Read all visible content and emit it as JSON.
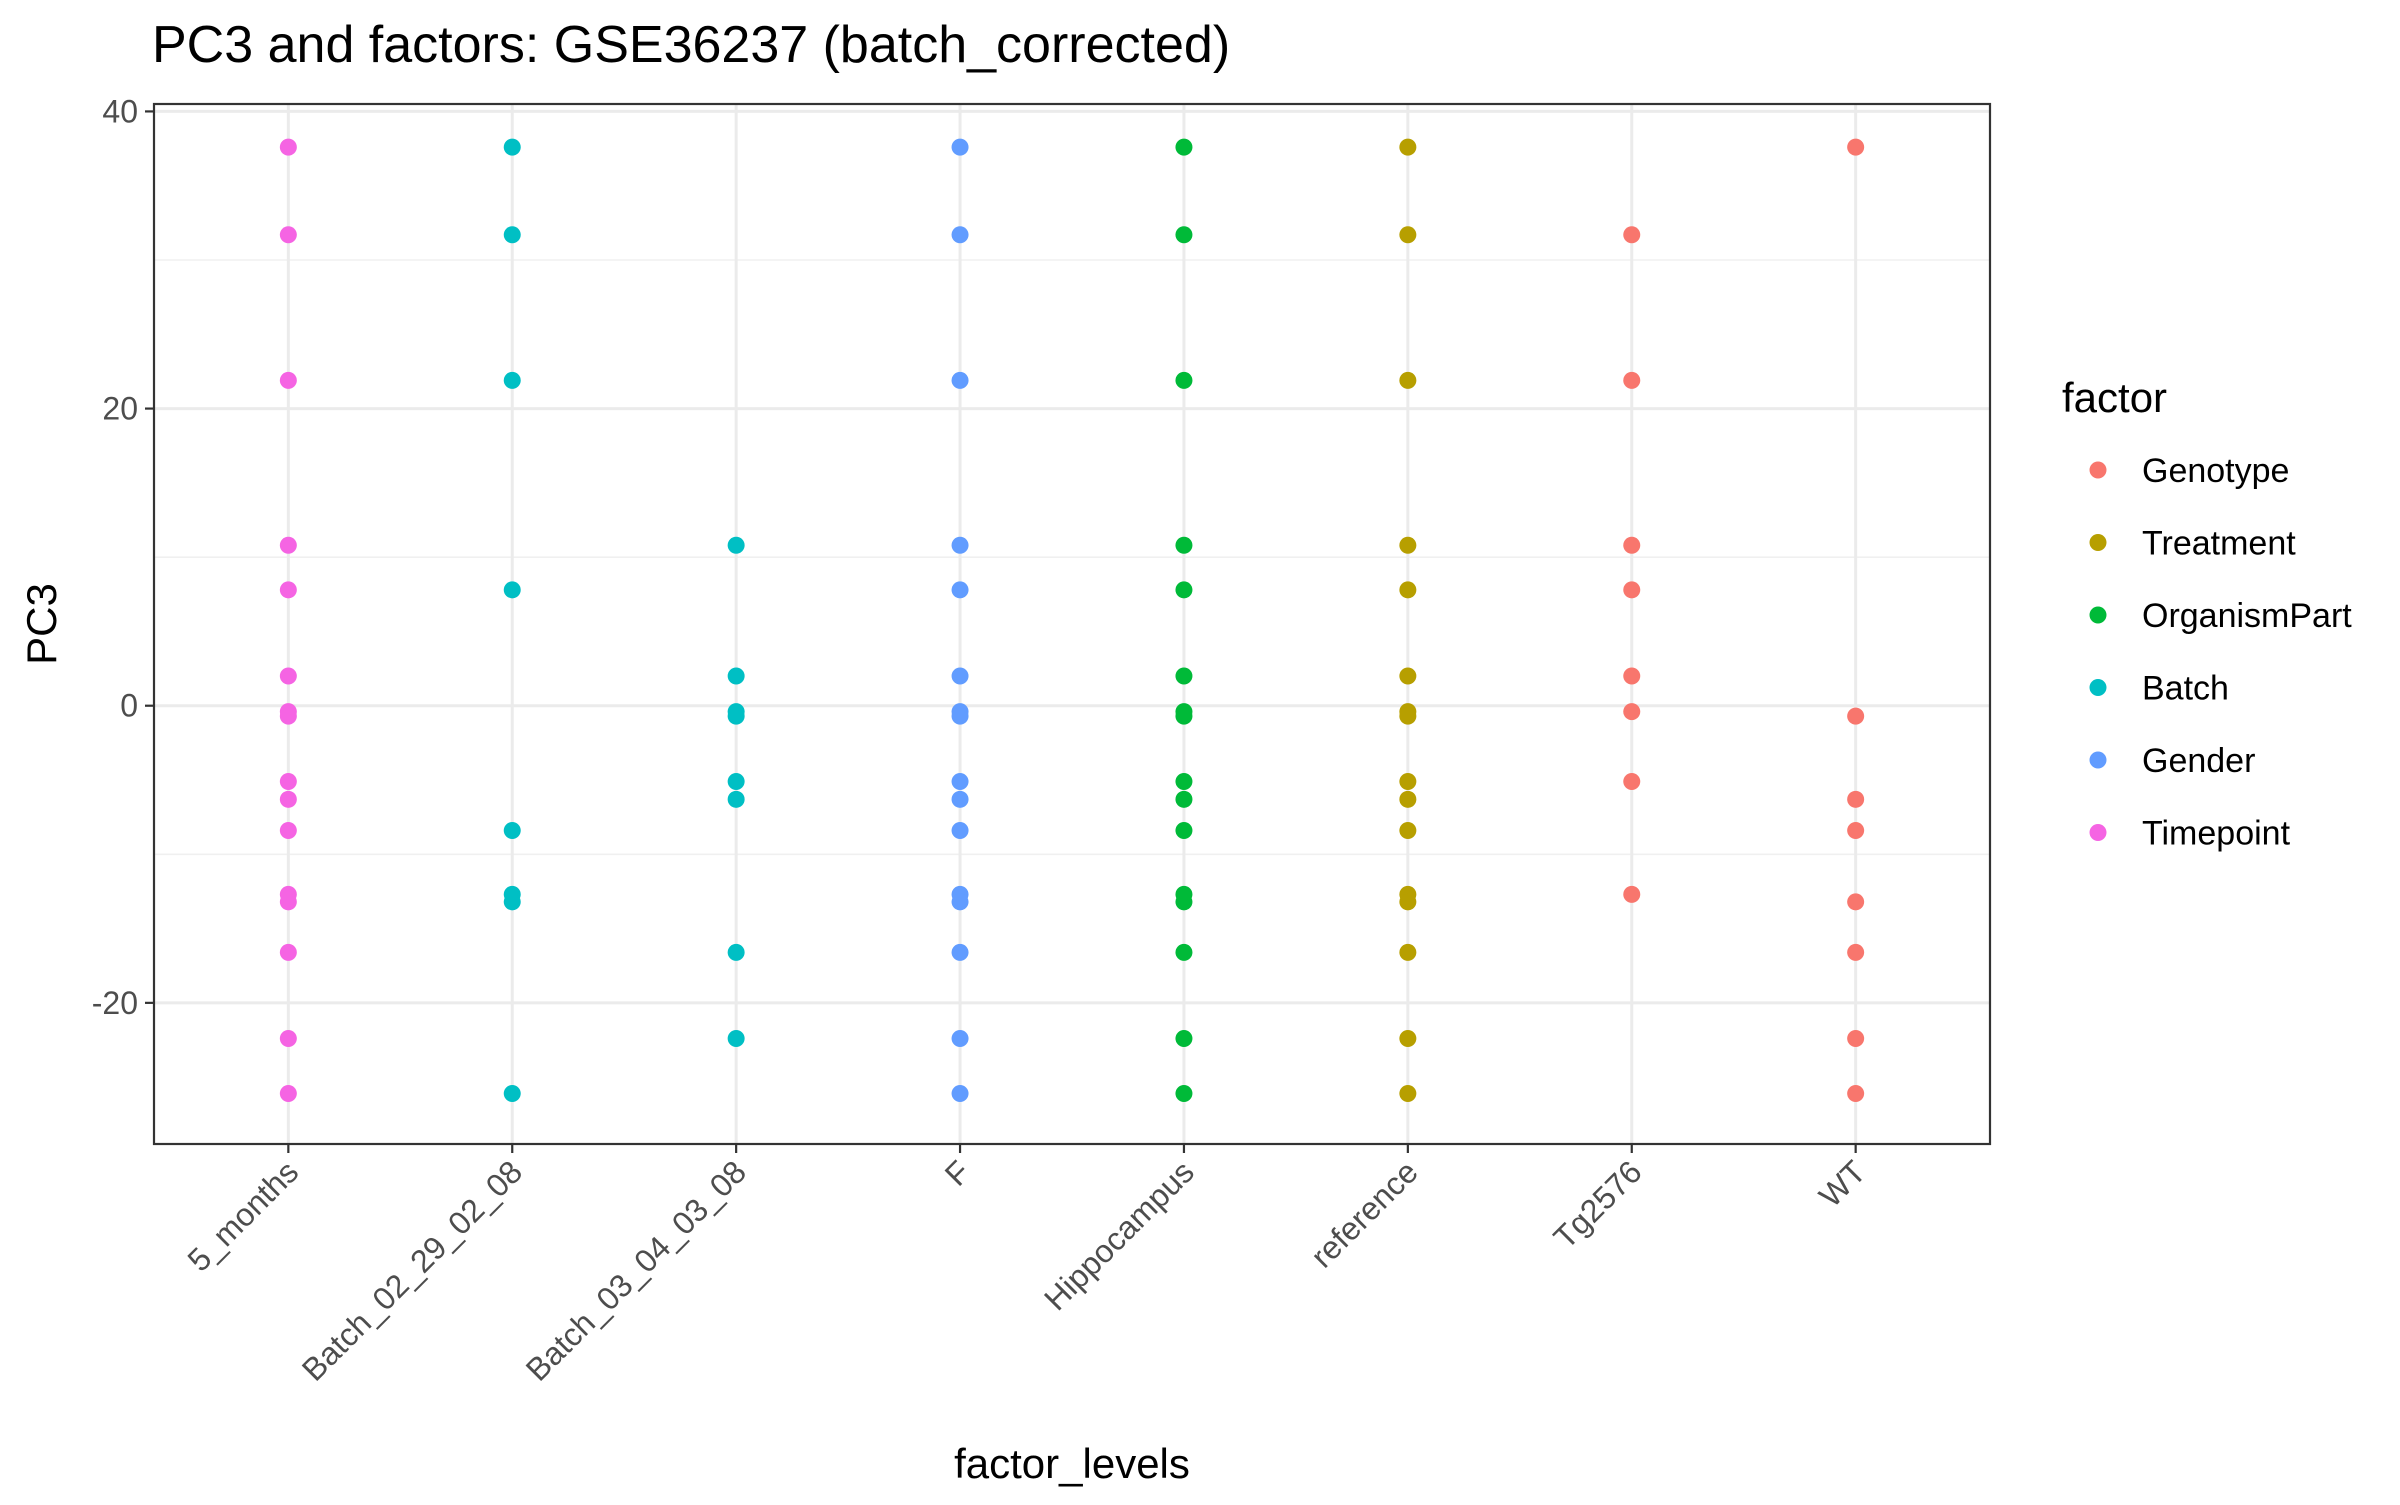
{
  "chart_data": {
    "type": "scatter",
    "title": "PC3 and factors: GSE36237 (batch_corrected)",
    "xlabel": "factor_levels",
    "ylabel": "PC3",
    "ylim": [
      -29.5,
      40.5
    ],
    "yticks": [
      -20,
      0,
      20,
      40
    ],
    "grid": true,
    "legend": {
      "title": "factor",
      "position": "right"
    },
    "categories": [
      "5_months",
      "Batch_02_29_02_08",
      "Batch_03_04_03_08",
      "F",
      "Hippocampus",
      "reference",
      "Tg2576",
      "WT"
    ],
    "series": [
      {
        "name": "Genotype",
        "color": "#F8766D",
        "points": [
          {
            "x": "Tg2576",
            "y": 31.7
          },
          {
            "x": "Tg2576",
            "y": 21.9
          },
          {
            "x": "Tg2576",
            "y": 10.8
          },
          {
            "x": "Tg2576",
            "y": 7.8
          },
          {
            "x": "Tg2576",
            "y": 2.0
          },
          {
            "x": "Tg2576",
            "y": -0.4
          },
          {
            "x": "Tg2576",
            "y": -5.1
          },
          {
            "x": "Tg2576",
            "y": -12.7
          },
          {
            "x": "WT",
            "y": 37.6
          },
          {
            "x": "WT",
            "y": -0.7
          },
          {
            "x": "WT",
            "y": -6.3
          },
          {
            "x": "WT",
            "y": -8.4
          },
          {
            "x": "WT",
            "y": -13.2
          },
          {
            "x": "WT",
            "y": -16.6
          },
          {
            "x": "WT",
            "y": -22.4
          },
          {
            "x": "WT",
            "y": -26.1
          }
        ]
      },
      {
        "name": "Treatment",
        "color": "#B79F00",
        "points": [
          {
            "x": "reference",
            "y": 37.6
          },
          {
            "x": "reference",
            "y": 31.7
          },
          {
            "x": "reference",
            "y": 21.9
          },
          {
            "x": "reference",
            "y": 10.8
          },
          {
            "x": "reference",
            "y": 7.8
          },
          {
            "x": "reference",
            "y": 2.0
          },
          {
            "x": "reference",
            "y": -0.4
          },
          {
            "x": "reference",
            "y": -0.7
          },
          {
            "x": "reference",
            "y": -5.1
          },
          {
            "x": "reference",
            "y": -6.3
          },
          {
            "x": "reference",
            "y": -8.4
          },
          {
            "x": "reference",
            "y": -12.7
          },
          {
            "x": "reference",
            "y": -13.2
          },
          {
            "x": "reference",
            "y": -16.6
          },
          {
            "x": "reference",
            "y": -22.4
          },
          {
            "x": "reference",
            "y": -26.1
          }
        ]
      },
      {
        "name": "OrganismPart",
        "color": "#00BA38",
        "points": [
          {
            "x": "Hippocampus",
            "y": 37.6
          },
          {
            "x": "Hippocampus",
            "y": 31.7
          },
          {
            "x": "Hippocampus",
            "y": 21.9
          },
          {
            "x": "Hippocampus",
            "y": 10.8
          },
          {
            "x": "Hippocampus",
            "y": 7.8
          },
          {
            "x": "Hippocampus",
            "y": 2.0
          },
          {
            "x": "Hippocampus",
            "y": -0.4
          },
          {
            "x": "Hippocampus",
            "y": -0.7
          },
          {
            "x": "Hippocampus",
            "y": -5.1
          },
          {
            "x": "Hippocampus",
            "y": -6.3
          },
          {
            "x": "Hippocampus",
            "y": -8.4
          },
          {
            "x": "Hippocampus",
            "y": -12.7
          },
          {
            "x": "Hippocampus",
            "y": -13.2
          },
          {
            "x": "Hippocampus",
            "y": -16.6
          },
          {
            "x": "Hippocampus",
            "y": -22.4
          },
          {
            "x": "Hippocampus",
            "y": -26.1
          }
        ]
      },
      {
        "name": "Batch",
        "color": "#00BFC4",
        "points": [
          {
            "x": "Batch_02_29_02_08",
            "y": 37.6
          },
          {
            "x": "Batch_02_29_02_08",
            "y": 31.7
          },
          {
            "x": "Batch_02_29_02_08",
            "y": 21.9
          },
          {
            "x": "Batch_02_29_02_08",
            "y": 7.8
          },
          {
            "x": "Batch_02_29_02_08",
            "y": -8.4
          },
          {
            "x": "Batch_02_29_02_08",
            "y": -12.7
          },
          {
            "x": "Batch_02_29_02_08",
            "y": -13.2
          },
          {
            "x": "Batch_02_29_02_08",
            "y": -26.1
          },
          {
            "x": "Batch_03_04_03_08",
            "y": 10.8
          },
          {
            "x": "Batch_03_04_03_08",
            "y": 2.0
          },
          {
            "x": "Batch_03_04_03_08",
            "y": -0.4
          },
          {
            "x": "Batch_03_04_03_08",
            "y": -0.7
          },
          {
            "x": "Batch_03_04_03_08",
            "y": -5.1
          },
          {
            "x": "Batch_03_04_03_08",
            "y": -6.3
          },
          {
            "x": "Batch_03_04_03_08",
            "y": -16.6
          },
          {
            "x": "Batch_03_04_03_08",
            "y": -22.4
          }
        ]
      },
      {
        "name": "Gender",
        "color": "#619CFF",
        "points": [
          {
            "x": "F",
            "y": 37.6
          },
          {
            "x": "F",
            "y": 31.7
          },
          {
            "x": "F",
            "y": 21.9
          },
          {
            "x": "F",
            "y": 10.8
          },
          {
            "x": "F",
            "y": 7.8
          },
          {
            "x": "F",
            "y": 2.0
          },
          {
            "x": "F",
            "y": -0.4
          },
          {
            "x": "F",
            "y": -0.7
          },
          {
            "x": "F",
            "y": -5.1
          },
          {
            "x": "F",
            "y": -6.3
          },
          {
            "x": "F",
            "y": -8.4
          },
          {
            "x": "F",
            "y": -12.7
          },
          {
            "x": "F",
            "y": -13.2
          },
          {
            "x": "F",
            "y": -16.6
          },
          {
            "x": "F",
            "y": -22.4
          },
          {
            "x": "F",
            "y": -26.1
          }
        ]
      },
      {
        "name": "Timepoint",
        "color": "#F564E3",
        "points": [
          {
            "x": "5_months",
            "y": 37.6
          },
          {
            "x": "5_months",
            "y": 31.7
          },
          {
            "x": "5_months",
            "y": 21.9
          },
          {
            "x": "5_months",
            "y": 10.8
          },
          {
            "x": "5_months",
            "y": 7.8
          },
          {
            "x": "5_months",
            "y": 2.0
          },
          {
            "x": "5_months",
            "y": -0.4
          },
          {
            "x": "5_months",
            "y": -0.7
          },
          {
            "x": "5_months",
            "y": -5.1
          },
          {
            "x": "5_months",
            "y": -6.3
          },
          {
            "x": "5_months",
            "y": -8.4
          },
          {
            "x": "5_months",
            "y": -12.7
          },
          {
            "x": "5_months",
            "y": -13.2
          },
          {
            "x": "5_months",
            "y": -16.6
          },
          {
            "x": "5_months",
            "y": -22.4
          },
          {
            "x": "5_months",
            "y": -26.1
          }
        ]
      }
    ]
  }
}
